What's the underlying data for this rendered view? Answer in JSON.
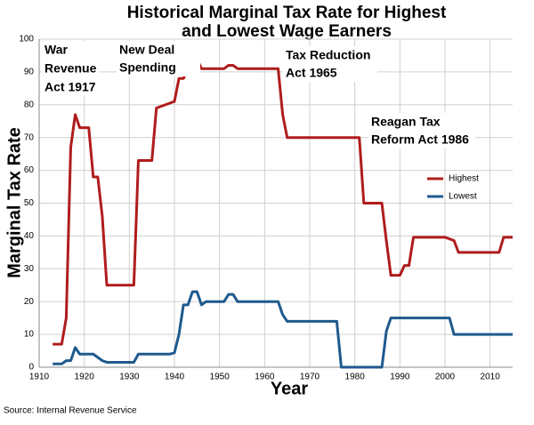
{
  "chart_data": {
    "type": "line",
    "title": [
      "Historical Marginal Tax Rate for Highest",
      "and Lowest Wage Earners"
    ],
    "x_label": "Year",
    "y_label": "Marginal Tax Rate",
    "source": "Source: Internal Revenue Service",
    "xlim": [
      1910,
      2015
    ],
    "xticks": [
      1910,
      1920,
      1930,
      1940,
      1950,
      1960,
      1970,
      1980,
      1990,
      2000,
      2010
    ],
    "ylim": [
      0,
      100
    ],
    "yticks": [
      0,
      10,
      20,
      30,
      40,
      50,
      60,
      70,
      80,
      90,
      100
    ],
    "grid": true,
    "legend": "right",
    "series": [
      {
        "name": "Highest",
        "color": "#b01c1c",
        "x": [
          1913,
          1915,
          1916,
          1917,
          1918,
          1919,
          1921,
          1922,
          1923,
          1924,
          1925,
          1931,
          1932,
          1935,
          1936,
          1940,
          1941,
          1942,
          1944,
          1945,
          1946,
          1951,
          1952,
          1953,
          1954,
          1963,
          1964,
          1965,
          1981,
          1982,
          1986,
          1987,
          1988,
          1990,
          1991,
          1992,
          1993,
          2000,
          2001,
          2002,
          2003,
          2012,
          2013,
          2015
        ],
        "values": [
          7,
          7,
          15,
          67,
          77,
          73,
          73,
          58,
          58,
          46,
          25,
          25,
          63,
          63,
          79,
          81,
          88,
          88,
          94,
          94,
          91,
          91,
          92,
          92,
          91,
          91,
          77,
          70,
          70,
          50,
          50,
          38.5,
          28,
          28,
          31,
          31,
          39.6,
          39.6,
          39.1,
          38.6,
          35,
          35,
          39.6,
          39.6
        ]
      },
      {
        "name": "Lowest",
        "color": "#1f5a8e",
        "x": [
          1913,
          1915,
          1916,
          1917,
          1918,
          1919,
          1922,
          1924,
          1925,
          1931,
          1932,
          1939,
          1940,
          1941,
          1942,
          1943,
          1944,
          1945,
          1946,
          1947,
          1951,
          1952,
          1953,
          1954,
          1963,
          1964,
          1965,
          1976,
          1977,
          1986,
          1987,
          1988,
          2000,
          2001,
          2002,
          2015
        ],
        "values": [
          1,
          1,
          2,
          2,
          6,
          4,
          4,
          2,
          1.5,
          1.5,
          4,
          4,
          4.4,
          10,
          19,
          19,
          23,
          23,
          19,
          20,
          20,
          22.2,
          22.2,
          20,
          20,
          16,
          14,
          14,
          0,
          0,
          11,
          15,
          15,
          15,
          10,
          10
        ]
      }
    ],
    "annotations": [
      {
        "lines": [
          "War",
          "Revenue",
          "Act 1917"
        ]
      },
      {
        "lines": [
          "New Deal",
          "Spending"
        ]
      },
      {
        "lines": [
          "Tax Reduction",
          "Act 1965"
        ]
      },
      {
        "lines": [
          "Reagan Tax",
          "Reform Act 1986"
        ]
      }
    ]
  }
}
